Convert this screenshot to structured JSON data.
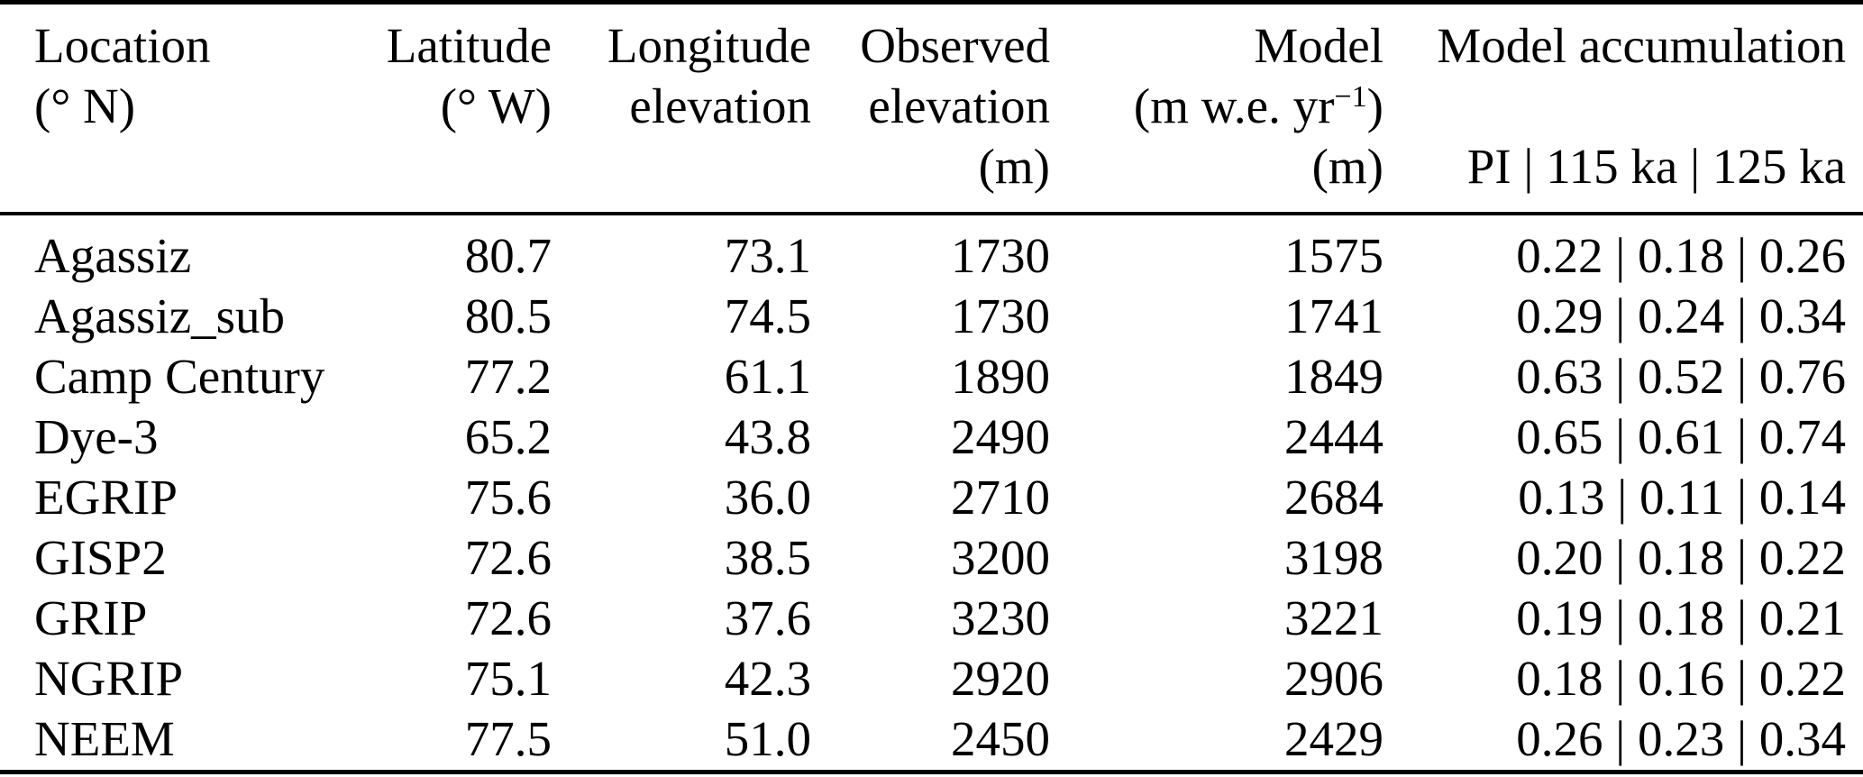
{
  "page": {
    "background_color": "#ffffff",
    "text_color": "#000000"
  },
  "table": {
    "header": {
      "col1": {
        "l1": "Location",
        "l2": "(° N)",
        "l3": ""
      },
      "col2": {
        "l1": "Latitude",
        "l2": "(° W)",
        "l3": ""
      },
      "col3": {
        "l1": "Longitude",
        "l2": "elevation",
        "l3": ""
      },
      "col4": {
        "l1": "Observed",
        "l2": "elevation",
        "l3": "(m)"
      },
      "col5": {
        "l1": "Model",
        "l2_prefix": "(m w.e. yr",
        "l2_sup": "−1",
        "l2_suffix": ")",
        "l3": "(m)"
      },
      "col6": {
        "l1": "Model accumulation",
        "l2": "",
        "l3": "PI | 115 ka | 125 ka"
      }
    },
    "rows": [
      [
        "Agassiz",
        "80.7",
        "73.1",
        "1730",
        "1575",
        "0.22 | 0.18 | 0.26"
      ],
      [
        "Agassiz_sub",
        "80.5",
        "74.5",
        "1730",
        "1741",
        "0.29 | 0.24 | 0.34"
      ],
      [
        "Camp Century",
        "77.2",
        "61.1",
        "1890",
        "1849",
        "0.63 | 0.52 | 0.76"
      ],
      [
        "Dye-3",
        "65.2",
        "43.8",
        "2490",
        "2444",
        "0.65 | 0.61 | 0.74"
      ],
      [
        "EGRIP",
        "75.6",
        "36.0",
        "2710",
        "2684",
        "0.13 | 0.11 | 0.14"
      ],
      [
        "GISP2",
        "72.6",
        "38.5",
        "3200",
        "3198",
        "0.20 | 0.18 | 0.22"
      ],
      [
        "GRIP",
        "72.6",
        "37.6",
        "3230",
        "3221",
        "0.19 | 0.18 | 0.21"
      ],
      [
        "NGRIP",
        "75.1",
        "42.3",
        "2920",
        "2906",
        "0.18 | 0.16 | 0.22"
      ],
      [
        "NEEM",
        "77.5",
        "51.0",
        "2450",
        "2429",
        "0.26 | 0.23 | 0.34"
      ]
    ]
  }
}
